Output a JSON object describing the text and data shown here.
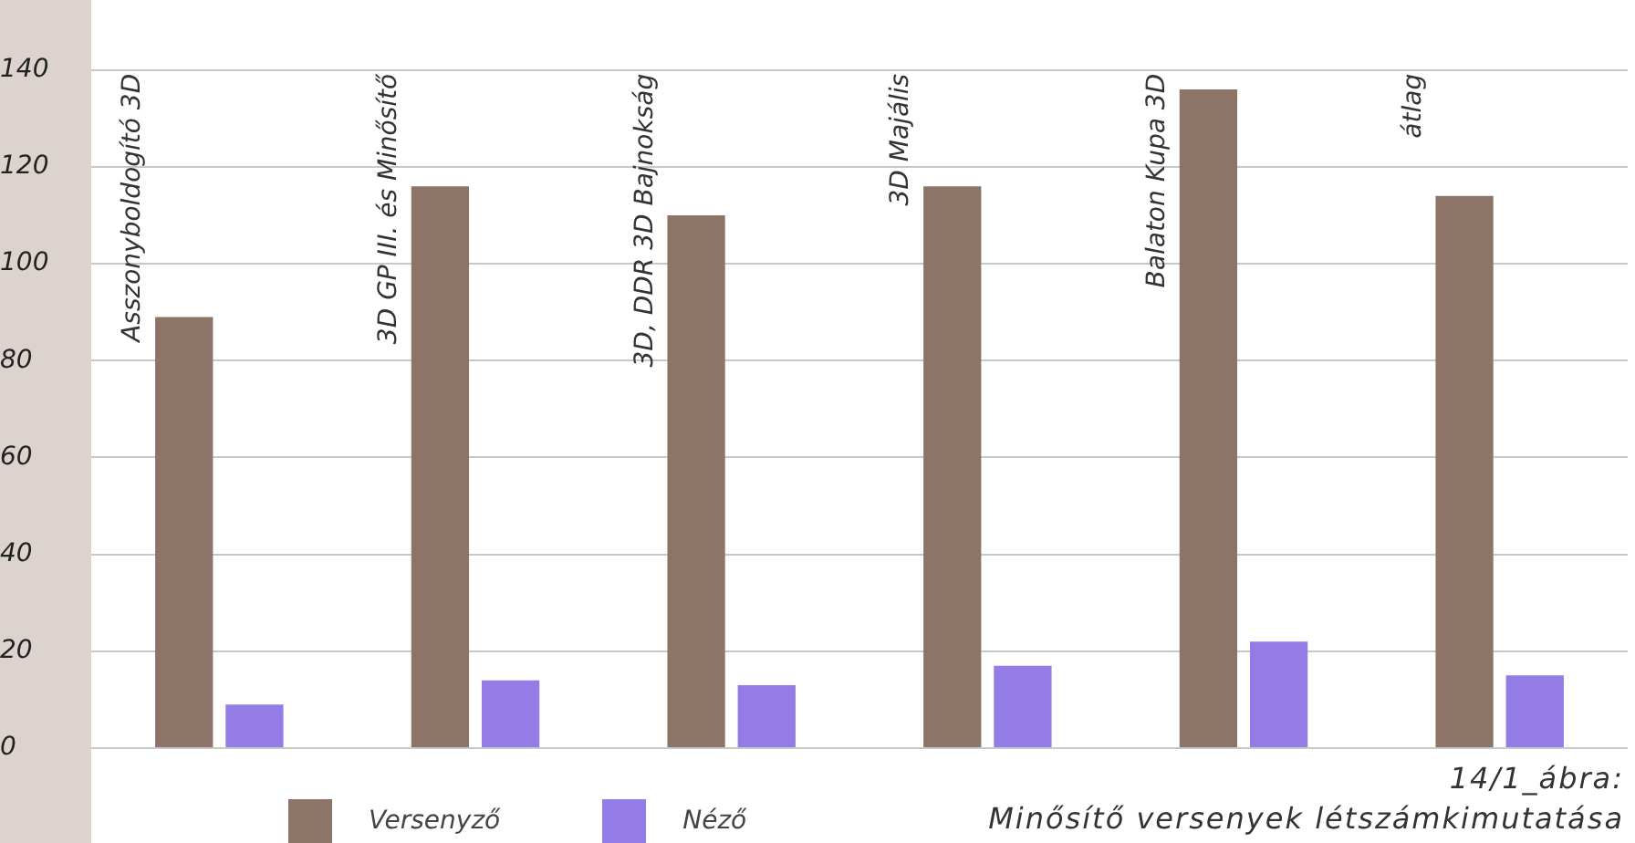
{
  "chart_data": {
    "type": "bar",
    "title": "14/1_ábra:",
    "subtitle": "Minősítő versenyek létszámkimutatása",
    "categories": [
      "Asszonyboldogító 3D",
      "3D GP III. és Minősítő",
      "3D, DDR 3D Bajnokság",
      "3D Majális",
      "Balaton Kupa 3D",
      "átlag"
    ],
    "series": [
      {
        "name": "Versenyző",
        "color": "#8c7566",
        "values": [
          89,
          116,
          110,
          116,
          136,
          114
        ]
      },
      {
        "name": "Néző",
        "color": "#937ce6",
        "values": [
          9,
          14,
          13,
          17,
          22,
          15
        ]
      }
    ],
    "ylim": [
      0,
      140
    ],
    "yticks": [
      0,
      20,
      40,
      60,
      80,
      100,
      120,
      140
    ],
    "grid": "y",
    "legend": "bottom left"
  }
}
